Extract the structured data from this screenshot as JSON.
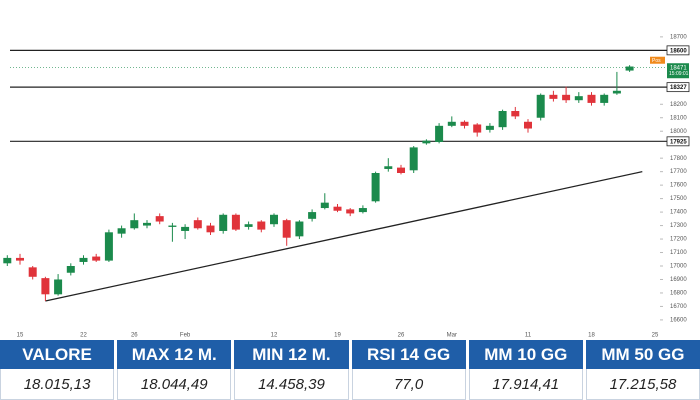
{
  "chart_data": {
    "type": "candlestick",
    "categories": [
      null,
      "15",
      null,
      null,
      null,
      null,
      "22",
      null,
      null,
      null,
      "26",
      null,
      null,
      null,
      "Feb",
      null,
      null,
      null,
      null,
      null,
      null,
      "12",
      null,
      null,
      null,
      null,
      "19",
      null,
      null,
      null,
      null,
      "26",
      null,
      null,
      null,
      "Mar",
      null,
      null,
      null,
      null,
      null,
      "11",
      null,
      null,
      null,
      null,
      "18",
      null,
      null,
      null,
      null,
      "25"
    ],
    "open": [
      17020,
      17060,
      16990,
      16910,
      16790,
      16950,
      17030,
      17070,
      17040,
      17240,
      17280,
      17300,
      17370,
      17290,
      17260,
      17340,
      17300,
      17260,
      17380,
      17290,
      17330,
      17310,
      17340,
      17220,
      17350,
      17430,
      17440,
      17420,
      17400,
      17480,
      17720,
      17730,
      17710,
      17910,
      17920,
      18040,
      18070,
      18050,
      18010,
      18030,
      18150,
      18070,
      18100,
      18270,
      18270,
      18230,
      18270,
      18210,
      18280,
      18450,
      null,
      null
    ],
    "high": [
      17080,
      17090,
      17000,
      16920,
      16940,
      17020,
      17080,
      17090,
      17270,
      17300,
      17390,
      17340,
      17390,
      17320,
      17310,
      17360,
      17320,
      17390,
      17390,
      17330,
      17340,
      17390,
      17350,
      17340,
      17420,
      17540,
      17460,
      17430,
      17450,
      17700,
      17800,
      17750,
      17890,
      17940,
      18060,
      18110,
      18080,
      18060,
      18060,
      18160,
      18180,
      18090,
      18280,
      18300,
      18330,
      18290,
      18290,
      18280,
      18440,
      18490,
      null,
      null
    ],
    "low": [
      17000,
      17010,
      16900,
      16740,
      16780,
      16930,
      17010,
      17030,
      17030,
      17210,
      17270,
      17280,
      17310,
      17180,
      17200,
      17270,
      17230,
      17240,
      17260,
      17270,
      17250,
      17290,
      17150,
      17200,
      17330,
      17420,
      17400,
      17370,
      17390,
      17470,
      17700,
      17680,
      17690,
      17900,
      17910,
      18030,
      18020,
      17960,
      17990,
      18010,
      18090,
      17990,
      18080,
      18220,
      18210,
      18210,
      18190,
      18190,
      18270,
      18440,
      null,
      null
    ],
    "close": [
      17060,
      17040,
      16920,
      16790,
      16900,
      17000,
      17060,
      17040,
      17250,
      17280,
      17340,
      17320,
      17330,
      17300,
      17290,
      17280,
      17250,
      17380,
      17270,
      17310,
      17270,
      17380,
      17210,
      17330,
      17400,
      17470,
      17410,
      17390,
      17430,
      17690,
      17740,
      17690,
      17880,
      17930,
      18040,
      18070,
      18040,
      17990,
      18040,
      18150,
      18110,
      18020,
      18270,
      18240,
      18230,
      18260,
      18210,
      18270,
      18300,
      18480,
      null,
      null
    ],
    "up_color": "#1b8a4c",
    "down_color": "#e0333a",
    "ylim": [
      16540,
      18840
    ],
    "yticks": [
      16600,
      16700,
      16800,
      16900,
      17000,
      17100,
      17200,
      17300,
      17400,
      17500,
      17600,
      17700,
      17800,
      18000,
      18100,
      18200,
      18700
    ],
    "levels": [
      18600,
      18327,
      17925
    ],
    "trendline": [
      16740,
      17700
    ],
    "last_price": 18471,
    "countdown": "15:09:01",
    "position_label": "Pos"
  },
  "table": {
    "headers": [
      "VALORE",
      "MAX 12 M.",
      "MIN 12 M.",
      "RSI 14 GG",
      "MM 10 GG",
      "MM 50 GG"
    ],
    "rows": [
      [
        "18.015,13",
        "18.044,49",
        "14.458,39",
        "77,0",
        "17.914,41",
        "17.215,58"
      ]
    ]
  }
}
